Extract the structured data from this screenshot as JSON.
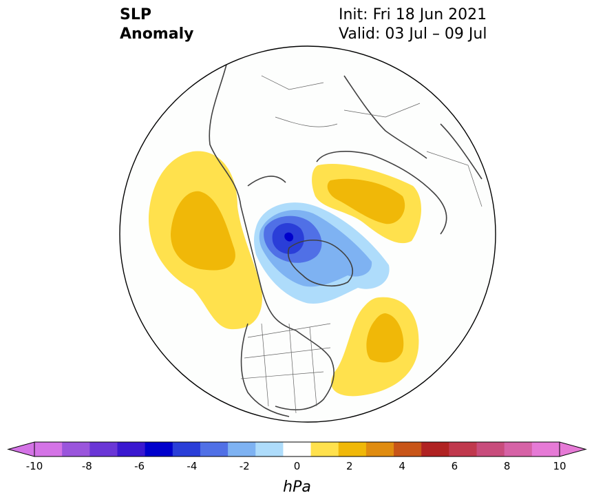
{
  "title": {
    "line1": "SLP",
    "line2": "Anomaly"
  },
  "info": {
    "init": "Init: Fri 18 Jun 2021",
    "valid": "Valid: 03 Jul – 09 Jul"
  },
  "colorbar": {
    "unit": "hPa",
    "levels": [
      -10,
      -9,
      -8,
      -7,
      -6,
      -5,
      -4,
      -3,
      -2,
      -1,
      1,
      2,
      3,
      4,
      5,
      6,
      7,
      8,
      9,
      10
    ],
    "tick_labels": [
      "-10",
      "-8",
      "-6",
      "-4",
      "-2",
      "0",
      "2",
      "4",
      "6",
      "8",
      "10"
    ],
    "colors": [
      "#d473e6",
      "#9a55dc",
      "#6a36d6",
      "#3a18d0",
      "#0000cc",
      "#2a3ed8",
      "#5070e6",
      "#7eb2f2",
      "#aedcfb",
      "#ffffff",
      "#ffe14d",
      "#f0b808",
      "#e08c10",
      "#c85518",
      "#b02222",
      "#c0384d",
      "#c84c7c",
      "#d662a6",
      "#e67ad6"
    ],
    "extend_low_color": "#d473e6",
    "extend_high_color": "#e67ad6"
  },
  "map": {
    "projection": "north-polar-stereographic",
    "field": "SLP anomaly (hPa)",
    "background": "#fdfefd",
    "coast_color": "#404040"
  }
}
